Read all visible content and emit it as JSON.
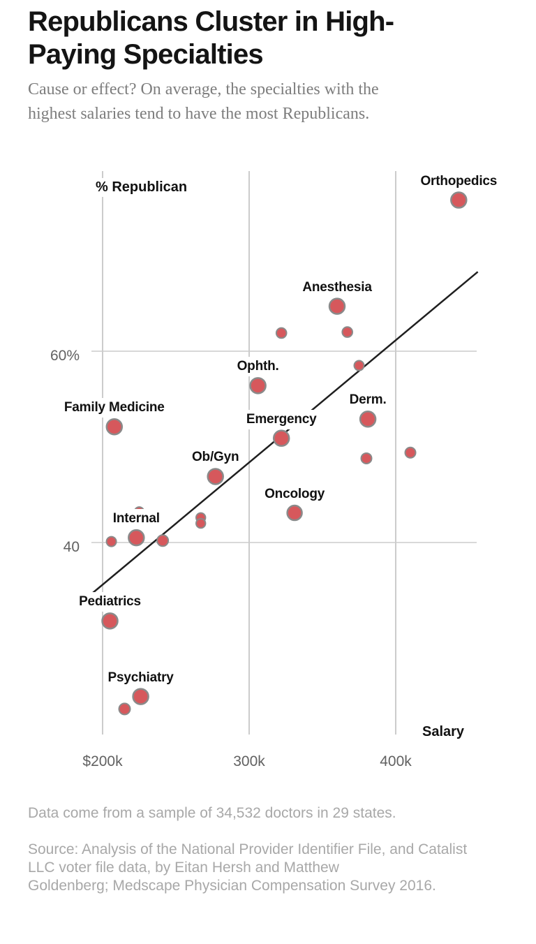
{
  "header": {
    "title_line1": "Republicans Cluster in High-",
    "title_line2": "Paying Specialties",
    "subtitle_line1": "Cause or effect? On average, the specialties with the",
    "subtitle_line2": "highest salaries tend to have the most Republicans."
  },
  "chart_data": {
    "type": "scatter",
    "title": "Republicans Cluster in High-Paying Specialties",
    "xlabel": "Salary",
    "ylabel": "% Republican",
    "x_axis": {
      "label": "Salary",
      "unit": "USD thousands",
      "ticks": [
        {
          "value": 200,
          "label": "$200k"
        },
        {
          "value": 300,
          "label": "300k"
        },
        {
          "value": 400,
          "label": "400k"
        }
      ],
      "range_k": [
        193,
        470
      ]
    },
    "y_axis": {
      "label": "% Republican",
      "ticks": [
        {
          "value": 60,
          "label": "60%"
        },
        {
          "value": 40,
          "label": "40"
        }
      ],
      "range_pct": [
        18,
        79
      ]
    },
    "grid": "on",
    "legend": "none",
    "colors": {
      "dot_fill": "#d6585c",
      "dot_stroke": "#8a8a8a",
      "grid": "#cccccc",
      "trend_line": "#1f1f1f",
      "label_text": "#111111"
    },
    "points": [
      {
        "label": "Orthopedics",
        "salary_k": 443,
        "pct_republican": 75.8,
        "r": 11
      },
      {
        "label": "Anesthesia",
        "salary_k": 360,
        "pct_republican": 64.7,
        "r": 11
      },
      {
        "label": "",
        "salary_k": 322,
        "pct_republican": 61.9,
        "r": 7.3
      },
      {
        "label": "",
        "salary_k": 367,
        "pct_republican": 62.0,
        "r": 7.3
      },
      {
        "label": "",
        "salary_k": 375,
        "pct_republican": 58.5,
        "r": 7
      },
      {
        "label": "Ophth.",
        "salary_k": 306,
        "pct_republican": 56.4,
        "r": 11
      },
      {
        "label": "Family Medicine",
        "salary_k": 208,
        "pct_republican": 52.1,
        "r": 11
      },
      {
        "label": "Derm.",
        "salary_k": 381,
        "pct_republican": 52.9,
        "r": 11
      },
      {
        "label": "",
        "salary_k": 380,
        "pct_republican": 48.8,
        "r": 7.5
      },
      {
        "label": "",
        "salary_k": 410,
        "pct_republican": 49.4,
        "r": 7.5
      },
      {
        "label": "Emergency",
        "salary_k": 322,
        "pct_republican": 50.9,
        "r": 11
      },
      {
        "label": "Ob/Gyn",
        "salary_k": 277,
        "pct_republican": 46.9,
        "r": 11
      },
      {
        "label": "Oncology",
        "salary_k": 331,
        "pct_republican": 43.1,
        "r": 10.5
      },
      {
        "label": "",
        "salary_k": 267,
        "pct_republican": 42.6,
        "r": 6.7
      },
      {
        "label": "",
        "salary_k": 267,
        "pct_republican": 42.0,
        "r": 6.7
      },
      {
        "label": "",
        "salary_k": 225,
        "pct_republican": 43.2,
        "r": 7
      },
      {
        "label": "",
        "salary_k": 206,
        "pct_republican": 40.1,
        "r": 7
      },
      {
        "label": "Internal",
        "salary_k": 223,
        "pct_republican": 40.5,
        "r": 11
      },
      {
        "label": "",
        "salary_k": 241,
        "pct_republican": 40.2,
        "r": 8
      },
      {
        "label": "Pediatrics",
        "salary_k": 205,
        "pct_republican": 31.8,
        "r": 11
      },
      {
        "label": "Psychiatry",
        "salary_k": 226,
        "pct_republican": 23.9,
        "r": 11
      },
      {
        "label": "",
        "salary_k": 215,
        "pct_republican": 22.6,
        "r": 8
      }
    ],
    "trend_line": {
      "salary_k_start": 193,
      "pct_start": 34.7,
      "salary_k_end": 456,
      "pct_end": 68.3
    }
  },
  "footer": {
    "note": "Data come from a sample of 34,532 doctors in 29 states.",
    "source_line1": "Source: Analysis of the National Provider Identifier File, and Catalist",
    "source_line2": "LLC voter file data, by Eitan Hersh and Matthew",
    "source_line3": "Goldenberg; Medscape Physician Compensation Survey 2016."
  }
}
